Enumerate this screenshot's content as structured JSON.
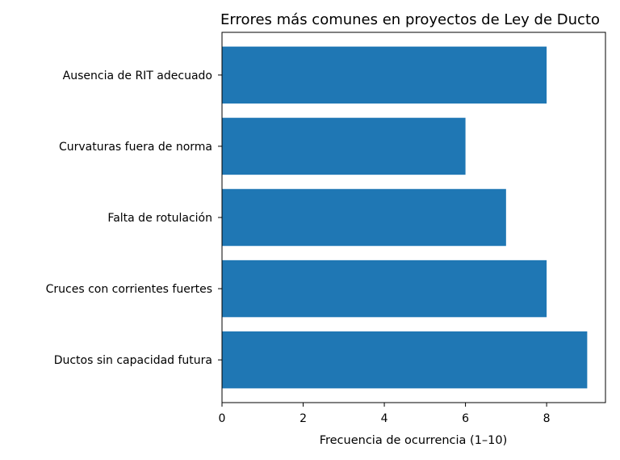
{
  "chart_data": {
    "type": "bar",
    "orientation": "horizontal",
    "title": "Errores más comunes en proyectos de Ley de Ducto",
    "xlabel": "Frecuencia de ocurrencia (1–10)",
    "ylabel": "",
    "categories": [
      "Ductos sin capacidad futura",
      "Cruces con corrientes fuertes",
      "Falta de rotulación",
      "Curvaturas fuera de norma",
      "Ausencia de RIT adecuado"
    ],
    "values": [
      9,
      8,
      7,
      6,
      8
    ],
    "xlim": [
      0,
      9.45
    ],
    "xticks": [
      "0",
      "2",
      "4",
      "6",
      "8"
    ],
    "grid": false,
    "bar_color": "#1f77b4"
  }
}
